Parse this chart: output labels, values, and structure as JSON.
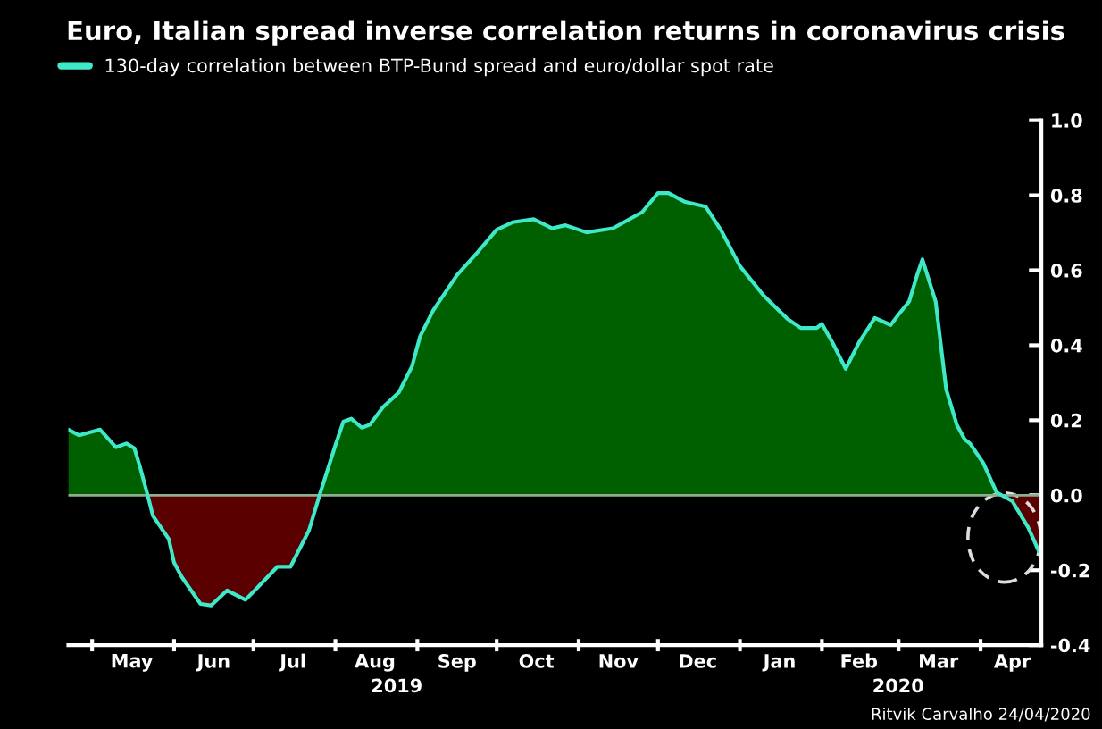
{
  "chart_data": {
    "type": "area",
    "title": "Euro, Italian spread inverse correlation returns in coronavirus crisis",
    "series": [
      {
        "name": "130-day correlation between BTP-Bund spread and euro/dollar spot rate",
        "color": "#3ee8c8",
        "x": [
          "2019-04-22",
          "2019-04-26",
          "2019-05-04",
          "2019-05-10",
          "2019-05-14",
          "2019-05-17",
          "2019-05-19",
          "2019-05-22",
          "2019-05-24",
          "2019-05-30",
          "2019-06-01",
          "2019-06-04",
          "2019-06-11",
          "2019-06-15",
          "2019-06-21",
          "2019-06-28",
          "2019-07-03",
          "2019-07-10",
          "2019-07-15",
          "2019-07-22",
          "2019-07-26",
          "2019-08-01",
          "2019-08-04",
          "2019-08-07",
          "2019-08-11",
          "2019-08-14",
          "2019-08-19",
          "2019-08-25",
          "2019-08-30",
          "2019-09-02",
          "2019-09-07",
          "2019-09-16",
          "2019-09-24",
          "2019-10-01",
          "2019-10-07",
          "2019-10-15",
          "2019-10-22",
          "2019-10-27",
          "2019-11-04",
          "2019-11-14",
          "2019-11-25",
          "2019-12-01",
          "2019-12-05",
          "2019-12-11",
          "2019-12-19",
          "2019-12-25",
          "2020-01-01",
          "2020-01-10",
          "2020-01-19",
          "2020-01-24",
          "2020-01-30",
          "2020-02-01",
          "2020-02-05",
          "2020-02-10",
          "2020-02-15",
          "2020-02-21",
          "2020-02-27",
          "2020-03-01",
          "2020-03-05",
          "2020-03-08",
          "2020-03-10",
          "2020-03-15",
          "2020-03-19",
          "2020-03-23",
          "2020-03-26",
          "2020-03-28",
          "2020-04-02",
          "2020-04-07",
          "2020-04-13",
          "2020-04-19",
          "2020-04-23"
        ],
        "values": [
          0.175,
          0.16,
          0.175,
          0.128,
          0.138,
          0.125,
          0.078,
          0.0,
          -0.055,
          -0.117,
          -0.18,
          -0.219,
          -0.29,
          -0.294,
          -0.254,
          -0.279,
          -0.243,
          -0.191,
          -0.191,
          -0.094,
          0.0,
          0.133,
          0.196,
          0.204,
          0.18,
          0.188,
          0.235,
          0.274,
          0.344,
          0.423,
          0.493,
          0.587,
          0.65,
          0.708,
          0.728,
          0.736,
          0.712,
          0.72,
          0.701,
          0.712,
          0.755,
          0.806,
          0.806,
          0.783,
          0.77,
          0.705,
          0.611,
          0.532,
          0.47,
          0.446,
          0.446,
          0.457,
          0.407,
          0.337,
          0.407,
          0.473,
          0.454,
          0.482,
          0.517,
          0.587,
          0.629,
          0.517,
          0.282,
          0.188,
          0.149,
          0.138,
          0.086,
          0.008,
          -0.016,
          -0.086,
          -0.149
        ]
      }
    ],
    "xlim": [
      "2019-04-22",
      "2020-04-24"
    ],
    "xticks": [
      {
        "value": "2019-05-01",
        "label": null
      },
      {
        "value": "2019-05-16",
        "label": "May"
      },
      {
        "value": "2019-06-01",
        "label": null
      },
      {
        "value": "2019-06-16",
        "label": "Jun"
      },
      {
        "value": "2019-07-01",
        "label": null
      },
      {
        "value": "2019-07-16",
        "label": "Jul"
      },
      {
        "value": "2019-08-01",
        "label": null
      },
      {
        "value": "2019-08-16",
        "label": "Aug"
      },
      {
        "value": "2019-09-01",
        "label": null
      },
      {
        "value": "2019-09-16",
        "label": "Sep"
      },
      {
        "value": "2019-10-01",
        "label": null
      },
      {
        "value": "2019-10-16",
        "label": "Oct"
      },
      {
        "value": "2019-11-01",
        "label": null
      },
      {
        "value": "2019-11-16",
        "label": "Nov"
      },
      {
        "value": "2019-12-01",
        "label": null
      },
      {
        "value": "2019-12-16",
        "label": "Dec"
      },
      {
        "value": "2020-01-01",
        "label": null
      },
      {
        "value": "2020-01-16",
        "label": "Jan"
      },
      {
        "value": "2020-02-01",
        "label": null
      },
      {
        "value": "2020-02-15",
        "label": "Feb"
      },
      {
        "value": "2020-03-01",
        "label": null
      },
      {
        "value": "2020-03-16",
        "label": "Mar"
      },
      {
        "value": "2020-04-01",
        "label": null
      },
      {
        "value": "2020-04-13",
        "label": "Apr"
      }
    ],
    "ylim": [
      -0.4,
      1.0
    ],
    "yticks": [
      -0.4,
      -0.2,
      {
        "value": 0,
        "label": "0.0"
      },
      0.2,
      0.4,
      0.6,
      0.8,
      {
        "value": 1,
        "label": "1.0"
      }
    ],
    "ref_lines": [
      {
        "axis": "y",
        "value": 0.0,
        "color": "#8fae8f"
      }
    ],
    "annotations": [
      "2019",
      "2020",
      "Ritvik Carvalho 24/04/2020"
    ],
    "legend": "top left",
    "grid": false
  }
}
